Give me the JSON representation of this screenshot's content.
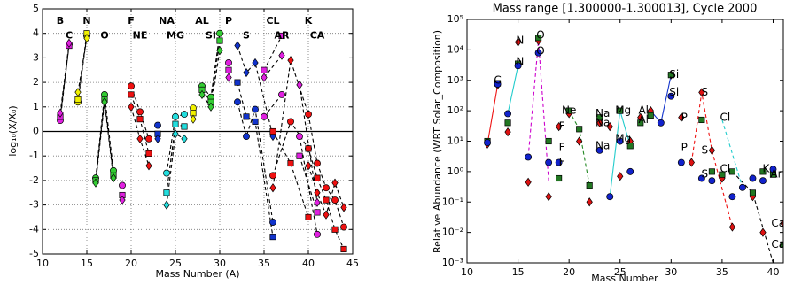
{
  "chart_data": [
    {
      "type": "scatter",
      "xlabel": "Mass Number (A)",
      "ylabel": "log₁₀(X/X₀)",
      "xlim": [
        10,
        45
      ],
      "xticks": [
        10,
        15,
        20,
        25,
        30,
        35,
        40,
        45
      ],
      "ylim": [
        -5,
        5
      ],
      "yticks": [
        -5,
        -4,
        -3,
        -2,
        -1,
        0,
        1,
        2,
        3,
        4,
        5
      ],
      "grid": true,
      "hline": 0,
      "line_style": "dashed",
      "line_color": "#000000",
      "groups": [
        {
          "color": "#e020e0",
          "x": [
            12,
            13
          ],
          "circle": [
            0.45,
            3.55
          ],
          "square": [
            0.6,
            3.5
          ],
          "diamond": [
            0.75,
            3.6
          ]
        },
        {
          "color": "#f0f000",
          "x": [
            14,
            15
          ],
          "circle": [
            1.2,
            3.9
          ],
          "square": [
            1.3,
            4.0
          ],
          "diamond": [
            1.6,
            3.8
          ]
        },
        {
          "color": "#33cc33",
          "x": [
            16,
            17,
            18
          ],
          "circle": [
            -1.9,
            1.5,
            -1.6
          ],
          "square": [
            -2.0,
            1.3,
            -1.8
          ],
          "diamond": [
            -2.1,
            1.2,
            -1.9
          ]
        },
        {
          "color": "#e020e0",
          "x": [
            19
          ],
          "circle": [
            -2.2
          ],
          "square": [
            -2.6
          ],
          "diamond": [
            -2.8
          ]
        },
        {
          "color": "#ee1111",
          "x": [
            20,
            21,
            22
          ],
          "circle": [
            1.85,
            0.8,
            -0.3
          ],
          "square": [
            1.5,
            0.5,
            -0.9
          ],
          "diamond": [
            1.0,
            -0.3,
            -1.4
          ]
        },
        {
          "color": "#1133cc",
          "x": [
            23
          ],
          "circle": [
            0.25
          ],
          "square": [
            -0.1
          ],
          "diamond": [
            -0.3
          ]
        },
        {
          "color": "#22dddd",
          "x": [
            24,
            25,
            26
          ],
          "circle": [
            -1.7,
            0.6,
            0.7
          ],
          "square": [
            -2.5,
            0.3,
            0.2
          ],
          "diamond": [
            -3.0,
            -0.1,
            -0.3
          ]
        },
        {
          "color": "#f0f000",
          "x": [
            27
          ],
          "circle": [
            0.95
          ],
          "square": [
            0.75
          ],
          "diamond": [
            0.5
          ]
        },
        {
          "color": "#33cc33",
          "x": [
            28,
            29,
            30
          ],
          "circle": [
            1.85,
            1.4,
            4.0
          ],
          "square": [
            1.7,
            1.2,
            3.7
          ],
          "diamond": [
            1.5,
            1.0,
            3.3
          ]
        },
        {
          "color": "#e020e0",
          "x": [
            31
          ],
          "circle": [
            2.8
          ],
          "square": [
            2.5
          ],
          "diamond": [
            2.2
          ]
        },
        {
          "color": "#1133cc",
          "x": [
            32,
            33,
            34,
            36
          ],
          "circle": [
            1.2,
            -0.2,
            0.9,
            -3.7
          ],
          "square": [
            2.0,
            0.6,
            0.4,
            -4.3
          ],
          "diamond": [
            3.5,
            2.4,
            2.8,
            -0.2
          ]
        },
        {
          "color": "#e020e0",
          "x": [
            35,
            37
          ],
          "circle": [
            0.6,
            1.5
          ],
          "square": [
            2.5,
            3.9
          ],
          "diamond": [
            2.2,
            3.1
          ]
        },
        {
          "color": "#ee1111",
          "x": [
            36,
            38,
            40
          ],
          "circle": [
            -1.8,
            0.4,
            -0.7
          ],
          "square": [
            0.0,
            -1.3,
            -3.5
          ],
          "diamond": [
            -2.3,
            2.9,
            0.7
          ]
        },
        {
          "color": "#e020e0",
          "x": [
            39,
            41
          ],
          "circle": [
            -0.2,
            -4.2
          ],
          "square": [
            -1.0,
            -3.3
          ],
          "diamond": [
            1.9,
            -2.9
          ]
        },
        {
          "color": "#ee1111",
          "x": [
            40,
            41,
            42,
            43,
            44
          ],
          "circle": [
            0.7,
            -1.3,
            -2.3,
            -2.8,
            -3.9
          ],
          "square": [
            -0.7,
            -1.9,
            -2.8,
            -4.0,
            -4.8
          ],
          "diamond": [
            -1.4,
            -2.5,
            -3.4,
            -2.1,
            -3.1
          ]
        }
      ],
      "annotations": [
        {
          "text": "B",
          "x": 12,
          "y": 4.5
        },
        {
          "text": "C",
          "x": 13,
          "y": 3.9
        },
        {
          "text": "N",
          "x": 15,
          "y": 4.5
        },
        {
          "text": "O",
          "x": 17,
          "y": 3.9
        },
        {
          "text": "F",
          "x": 20,
          "y": 4.5
        },
        {
          "text": "NE",
          "x": 21,
          "y": 3.9
        },
        {
          "text": "NA",
          "x": 24,
          "y": 4.5
        },
        {
          "text": "MG",
          "x": 25,
          "y": 3.9
        },
        {
          "text": "AL",
          "x": 28,
          "y": 4.5
        },
        {
          "text": "SI",
          "x": 29,
          "y": 3.9
        },
        {
          "text": "P",
          "x": 31,
          "y": 4.5
        },
        {
          "text": "S",
          "x": 33,
          "y": 3.9
        },
        {
          "text": "CL",
          "x": 36,
          "y": 4.5
        },
        {
          "text": "AR",
          "x": 37,
          "y": 3.9
        },
        {
          "text": "K",
          "x": 40,
          "y": 4.5
        },
        {
          "text": "CA",
          "x": 41,
          "y": 3.9
        }
      ]
    },
    {
      "type": "scatter",
      "title": "Mass range [1.300000-1.300013], Cycle 2000",
      "xlabel": "Mass Number",
      "ylabel": "Relative Abundance (WRT Solar_Composition)",
      "xlim": [
        10,
        41
      ],
      "xticks": [
        10,
        15,
        20,
        25,
        30,
        35,
        40
      ],
      "log_y": true,
      "ylim": [
        0.001,
        100000
      ],
      "yticks": [
        {
          "value": 0.001,
          "label": "10⁻³"
        },
        {
          "value": 0.01,
          "label": "10⁻²"
        },
        {
          "value": 0.1,
          "label": "10⁻¹"
        },
        {
          "value": 1,
          "label": "10⁰"
        },
        {
          "value": 10,
          "label": "10¹"
        },
        {
          "value": 100,
          "label": "10²"
        },
        {
          "value": 1000,
          "label": "10³"
        },
        {
          "value": 10000,
          "label": "10⁴"
        },
        {
          "value": 100000,
          "label": "10⁵"
        }
      ],
      "grid": false,
      "lines": [
        {
          "color": "#ee1111",
          "style": "solid",
          "x": [
            12,
            13
          ],
          "values": [
            8,
            700
          ]
        },
        {
          "color": "#22cccc",
          "style": "solid",
          "x": [
            14,
            15
          ],
          "values": [
            80,
            3000
          ]
        },
        {
          "color": "#cc00cc",
          "style": "dashed",
          "x": [
            16,
            17,
            18
          ],
          "values": [
            3,
            20000,
            0.5
          ]
        },
        {
          "color": "#228822",
          "style": "dashed",
          "x": [
            20,
            21,
            22
          ],
          "values": [
            100,
            25,
            0.35
          ]
        },
        {
          "color": "#22cccc",
          "style": "solid",
          "x": [
            24,
            25,
            26
          ],
          "values": [
            0.15,
            100,
            7
          ]
        },
        {
          "color": "#1133cc",
          "style": "solid",
          "x": [
            28,
            29,
            30
          ],
          "values": [
            100,
            40,
            1500
          ]
        },
        {
          "color": "#ee1111",
          "style": "dashed",
          "x": [
            32,
            33,
            34,
            36
          ],
          "values": [
            2,
            400,
            5,
            0.015
          ]
        },
        {
          "color": "#22cccc",
          "style": "dashed",
          "x": [
            35,
            37
          ],
          "values": [
            50,
            0.3
          ]
        },
        {
          "color": "#000000",
          "style": "dashed",
          "x": [
            36,
            38,
            40
          ],
          "values": [
            1,
            0.2,
            0.001
          ]
        }
      ],
      "series": [
        {
          "marker": "diamond",
          "color": "#dd1111",
          "x": [
            12,
            13,
            14,
            15,
            16,
            17,
            18,
            19,
            20,
            21,
            22,
            23,
            24,
            25,
            26,
            27,
            28,
            30,
            31,
            32,
            33,
            34,
            35,
            36,
            38,
            39,
            40,
            41
          ],
          "values": [
            8,
            700,
            20,
            18000,
            0.45,
            20000,
            0.15,
            30,
            80,
            10,
            0.1,
            40,
            30,
            0.7,
            10,
            60,
            100,
            1500,
            60,
            2,
            400,
            5,
            0.6,
            0.015,
            0.15,
            0.01,
            1,
            0.02
          ]
        },
        {
          "marker": "square",
          "color": "#227722",
          "x": [
            12,
            13,
            14,
            15,
            17,
            18,
            19,
            20,
            21,
            22,
            23,
            25,
            26,
            27,
            28,
            30,
            33,
            34,
            35,
            36,
            38,
            39,
            40,
            41
          ],
          "values": [
            10,
            800,
            40,
            3500,
            25000,
            10,
            0.6,
            100,
            25,
            0.35,
            60,
            100,
            7,
            40,
            70,
            1500,
            50,
            1,
            0.8,
            1,
            0.2,
            1,
            0.8,
            0.004
          ]
        },
        {
          "marker": "circle",
          "color": "#1122cc",
          "x": [
            12,
            13,
            14,
            15,
            16,
            17,
            18,
            19,
            23,
            24,
            25,
            26,
            29,
            30,
            31,
            33,
            34,
            36,
            37,
            38,
            39,
            40
          ],
          "values": [
            9,
            750,
            80,
            3000,
            3,
            8000,
            2,
            2,
            5,
            0.15,
            10,
            1,
            40,
            300,
            2,
            0.6,
            0.5,
            0.15,
            0.3,
            0.6,
            0.5,
            1.2
          ]
        }
      ],
      "annotations": [
        {
          "text": "C",
          "x": 13,
          "y": 1000
        },
        {
          "text": "N",
          "x": 15.2,
          "y": 20000
        },
        {
          "text": "N",
          "x": 15.2,
          "y": 4000
        },
        {
          "text": "O",
          "x": 17.2,
          "y": 30000
        },
        {
          "text": "O",
          "x": 17.2,
          "y": 9000
        },
        {
          "text": "F",
          "x": 19.3,
          "y": 30
        },
        {
          "text": "F",
          "x": 19.3,
          "y": 6
        },
        {
          "text": "F",
          "x": 19.3,
          "y": 2
        },
        {
          "text": "Ne",
          "x": 20,
          "y": 100
        },
        {
          "text": "Na",
          "x": 23.3,
          "y": 80
        },
        {
          "text": "Na",
          "x": 23.3,
          "y": 40
        },
        {
          "text": "Na",
          "x": 23.3,
          "y": 7
        },
        {
          "text": "Mg",
          "x": 25.3,
          "y": 100
        },
        {
          "text": "Mg",
          "x": 25.3,
          "y": 12
        },
        {
          "text": "Al",
          "x": 27.3,
          "y": 100
        },
        {
          "text": "Al",
          "x": 27.3,
          "y": 50
        },
        {
          "text": "Si",
          "x": 30.3,
          "y": 1500
        },
        {
          "text": "Si",
          "x": 30.3,
          "y": 400
        },
        {
          "text": "P",
          "x": 31.3,
          "y": 60
        },
        {
          "text": "P",
          "x": 31.3,
          "y": 6
        },
        {
          "text": "S",
          "x": 33.3,
          "y": 400
        },
        {
          "text": "S",
          "x": 33.3,
          "y": 5
        },
        {
          "text": "S",
          "x": 33.3,
          "y": 0.8
        },
        {
          "text": "Cl",
          "x": 35.3,
          "y": 60
        },
        {
          "text": "Cl",
          "x": 35.3,
          "y": 1.2
        },
        {
          "text": "K",
          "x": 39.3,
          "y": 1.2
        },
        {
          "text": "Ar",
          "x": 40.3,
          "y": 0.8
        },
        {
          "text": "Ca",
          "x": 40.5,
          "y": 0.02
        },
        {
          "text": "Ca",
          "x": 40.5,
          "y": 0.004
        }
      ]
    }
  ]
}
